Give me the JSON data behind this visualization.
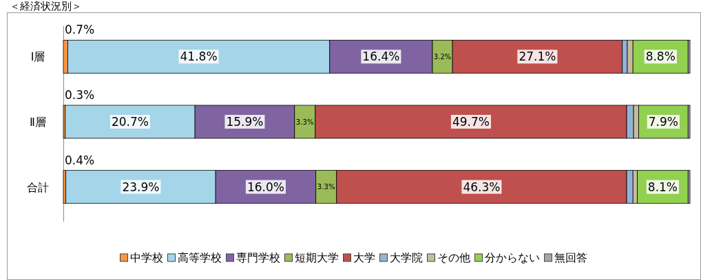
{
  "chart_data": {
    "type": "bar",
    "orientation": "horizontal",
    "stacked": true,
    "title": "＜経済状況別＞",
    "categories": [
      "Ⅰ層",
      "Ⅱ層",
      "合計"
    ],
    "xlim": [
      0,
      100
    ],
    "tick_labels": "y",
    "legend": "bottom",
    "series": [
      {
        "name": "中学校",
        "color": "#f79646",
        "values": [
          0.7,
          0.3,
          0.4
        ],
        "value_labels": [
          "0.7%",
          "0.3%",
          "0.4%"
        ]
      },
      {
        "name": "高等学校",
        "color": "#a5d5e8",
        "values": [
          41.8,
          20.7,
          23.9
        ],
        "value_labels": [
          "41.8%",
          "20.7%",
          "23.9%"
        ]
      },
      {
        "name": "専門学校",
        "color": "#8064a2",
        "values": [
          16.4,
          15.9,
          16.0
        ],
        "value_labels": [
          "16.4%",
          "15.9%",
          "16.0%"
        ]
      },
      {
        "name": "短期大学",
        "color": "#9bbb59",
        "values": [
          3.2,
          3.3,
          3.3
        ],
        "value_labels": [
          "3.2%",
          "3.3%",
          "3.3%"
        ]
      },
      {
        "name": "大学",
        "color": "#c0504d",
        "values": [
          27.1,
          49.7,
          46.3
        ],
        "value_labels": [
          "27.1%",
          "49.7%",
          "46.3%"
        ]
      },
      {
        "name": "大学院",
        "color": "#95b3d7",
        "values": [
          0.8,
          1.1,
          1.0
        ],
        "value_labels": [
          null,
          null,
          null
        ]
      },
      {
        "name": "その他",
        "color": "#c4bd97",
        "values": [
          0.9,
          0.8,
          0.7
        ],
        "value_labels": [
          null,
          null,
          null
        ]
      },
      {
        "name": "分からない",
        "color": "#92d050",
        "values": [
          8.8,
          7.9,
          8.1
        ],
        "value_labels": [
          "8.8%",
          "7.9%",
          "8.1%"
        ]
      },
      {
        "name": "無回答",
        "color": "#a6a6a6",
        "values": [
          0.3,
          0.3,
          0.3
        ],
        "value_labels": [
          null,
          null,
          null
        ]
      }
    ]
  }
}
